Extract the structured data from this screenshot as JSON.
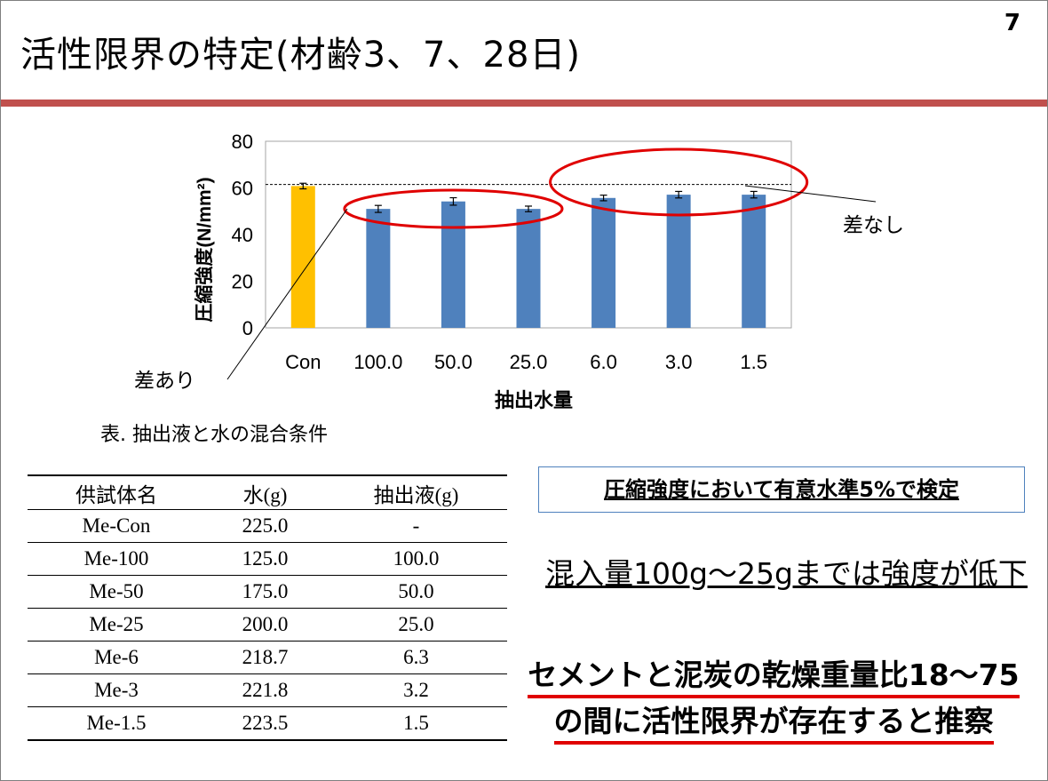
{
  "slide": {
    "title": "活性限界の特定(材齢3、7、28日)",
    "page_number": "7"
  },
  "chart_data": {
    "type": "bar",
    "categories": [
      "Con",
      "100.0",
      "50.0",
      "25.0",
      "6.0",
      "3.0",
      "1.5"
    ],
    "values": [
      60.8,
      51.0,
      54.2,
      51.0,
      55.7,
      57.1,
      57.1
    ],
    "errors": [
      1.2,
      1.5,
      1.6,
      1.2,
      1.2,
      1.4,
      1.4
    ],
    "bar_colors": [
      "#ffc000",
      "#4f81bd",
      "#4f81bd",
      "#4f81bd",
      "#4f81bd",
      "#4f81bd",
      "#4f81bd"
    ],
    "title": "",
    "xlabel": "抽出水量",
    "ylabel": "圧縮強度(N/mm²)",
    "ylim": [
      0,
      80
    ],
    "yticks": [
      "0",
      "20",
      "40",
      "60",
      "80"
    ],
    "reference_line": 61.5,
    "grid": false,
    "annotations": [
      "差あり",
      "差なし"
    ]
  },
  "table": {
    "caption": "表. 抽出液と水の混合条件",
    "headers": [
      "供試体名",
      "水(g)",
      "抽出液(g)"
    ],
    "rows": [
      [
        "Me-Con",
        "225.0",
        "-"
      ],
      [
        "Me-100",
        "125.0",
        "100.0"
      ],
      [
        "Me-50",
        "175.0",
        "50.0"
      ],
      [
        "Me-25",
        "200.0",
        "25.0"
      ],
      [
        "Me-6",
        "218.7",
        "6.3"
      ],
      [
        "Me-3",
        "221.8",
        "3.2"
      ],
      [
        "Me-1.5",
        "223.5",
        "1.5"
      ]
    ]
  },
  "notes": {
    "test_box": "圧縮強度において有意水準5%で検定",
    "conclusion1": "混入量100g～25gまでは強度が低下",
    "conclusion2_line1": "セメントと泥炭の乾燥重量比18～75",
    "conclusion2_line2": "の間に活性限界が存在すると推察"
  },
  "colors": {
    "accent_rule": "#c0504d",
    "highlight_ellipse": "#e00000",
    "note_box_border": "#4f81bd"
  }
}
